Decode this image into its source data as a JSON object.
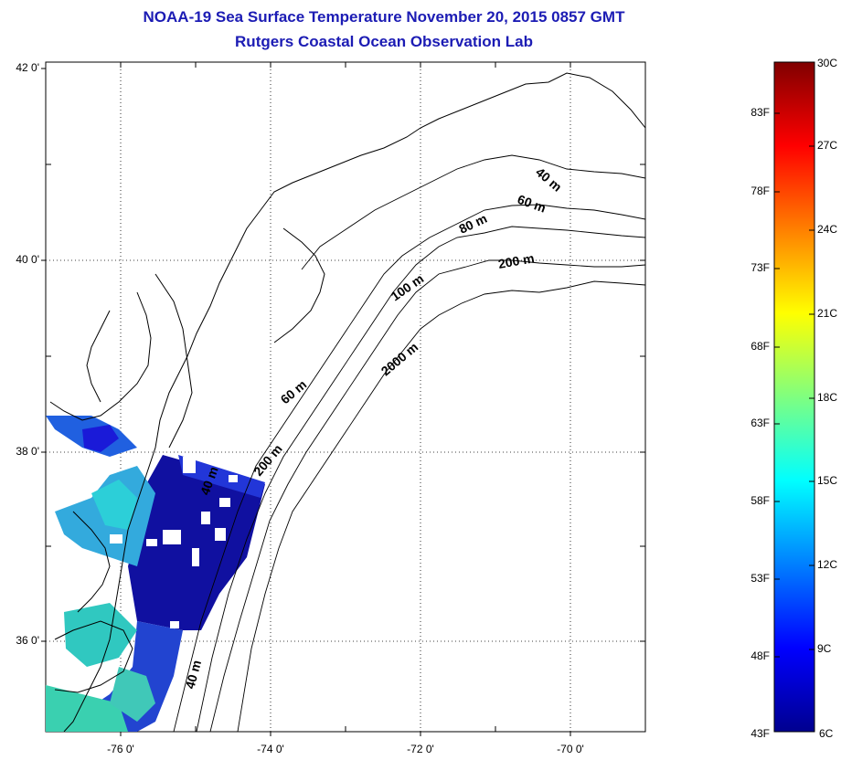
{
  "title": "NOAA-19 Sea Surface Temperature November 20, 2015 0857 GMT",
  "subtitle": "Rutgers Coastal Ocean Observation Lab",
  "map": {
    "lat_labels": [
      "42 0'",
      "40 0'",
      "38 0'",
      "36 0'"
    ],
    "lon_labels": [
      "-76 0'",
      "-74 0'",
      "-72 0'",
      "-70 0'"
    ],
    "grid": true,
    "isobath_labels": [
      "40 m",
      "60 m",
      "80 m",
      "200 m",
      "100 m",
      "2000 m",
      "60 m",
      "200 m",
      "40 m",
      "40 m"
    ]
  },
  "colorbar": {
    "fahrenheit_labels": [
      "83F",
      "78F",
      "73F",
      "68F",
      "63F",
      "58F",
      "53F",
      "48F",
      "43F"
    ],
    "celsius_labels": [
      "30C",
      "27C",
      "24C",
      "21C",
      "18C",
      "15C",
      "12C",
      "9C",
      "6C"
    ],
    "min_c": 6,
    "max_c": 30,
    "palette": [
      "#00008f",
      "#0000ff",
      "#00ffff",
      "#ffff00",
      "#ff0000",
      "#800000"
    ]
  }
}
